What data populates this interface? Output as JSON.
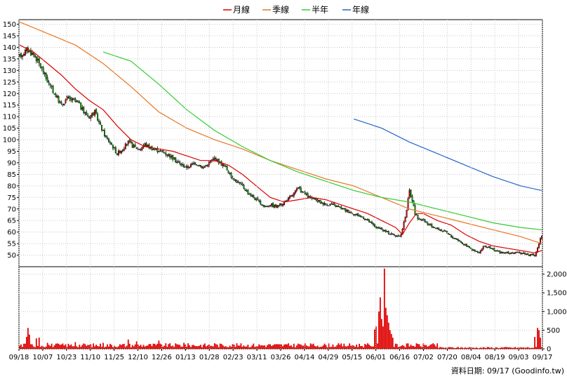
{
  "chart_data": {
    "type": "candlestick-with-volume",
    "legend": [
      {
        "label": "月線",
        "color": "#dd0000"
      },
      {
        "label": "季線",
        "color": "#e87722"
      },
      {
        "label": "半年",
        "color": "#33cc33"
      },
      {
        "label": "年線",
        "color": "#2266cc"
      }
    ],
    "price_axis": {
      "ylim": [
        45,
        152
      ],
      "ticks": [
        50,
        55,
        60,
        65,
        70,
        75,
        80,
        85,
        90,
        95,
        100,
        105,
        110,
        115,
        120,
        125,
        130,
        135,
        140,
        145,
        150
      ]
    },
    "volume_axis": {
      "ylim": [
        0,
        2200
      ],
      "ticks": [
        0,
        500,
        1000,
        1500,
        2000
      ],
      "tick_labels": [
        "0",
        "500",
        "1,000",
        "1,500",
        "2,000"
      ]
    },
    "x_labels": [
      "09/18",
      "10/07",
      "10/23",
      "11/10",
      "11/25",
      "12/10",
      "12/26",
      "01/13",
      "01/28",
      "02/23",
      "03/11",
      "03/26",
      "04/14",
      "04/29",
      "05/15",
      "06/01",
      "06/16",
      "07/02",
      "07/20",
      "08/04",
      "08/19",
      "09/03",
      "09/17"
    ],
    "price_anchors": [
      [
        0,
        136
      ],
      [
        5,
        139
      ],
      [
        10,
        137
      ],
      [
        14,
        133
      ],
      [
        18,
        128
      ],
      [
        22,
        123
      ],
      [
        26,
        119
      ],
      [
        30,
        115
      ],
      [
        34,
        118
      ],
      [
        38,
        117
      ],
      [
        42,
        116
      ],
      [
        46,
        112
      ],
      [
        50,
        110
      ],
      [
        54,
        112
      ],
      [
        58,
        106
      ],
      [
        62,
        101
      ],
      [
        66,
        98
      ],
      [
        70,
        94
      ],
      [
        74,
        96
      ],
      [
        78,
        99
      ],
      [
        82,
        97
      ],
      [
        86,
        96
      ],
      [
        90,
        98
      ],
      [
        96,
        96
      ],
      [
        102,
        95
      ],
      [
        108,
        93
      ],
      [
        114,
        90
      ],
      [
        120,
        88
      ],
      [
        126,
        90
      ],
      [
        132,
        88
      ],
      [
        136,
        90
      ],
      [
        140,
        92
      ],
      [
        144,
        90
      ],
      [
        148,
        88
      ],
      [
        152,
        84
      ],
      [
        156,
        82
      ],
      [
        160,
        80
      ],
      [
        164,
        77
      ],
      [
        168,
        75
      ],
      [
        172,
        73
      ],
      [
        176,
        71
      ],
      [
        180,
        72
      ],
      [
        184,
        71
      ],
      [
        188,
        72
      ],
      [
        192,
        74
      ],
      [
        196,
        76
      ],
      [
        200,
        79
      ],
      [
        204,
        77
      ],
      [
        208,
        75
      ],
      [
        212,
        74
      ],
      [
        216,
        73
      ],
      [
        220,
        72
      ],
      [
        224,
        72
      ],
      [
        228,
        71
      ],
      [
        232,
        70
      ],
      [
        236,
        69
      ],
      [
        240,
        68
      ],
      [
        244,
        67
      ],
      [
        248,
        66
      ],
      [
        252,
        64
      ],
      [
        256,
        62
      ],
      [
        260,
        61
      ],
      [
        264,
        60
      ],
      [
        268,
        59
      ],
      [
        272,
        58
      ],
      [
        274,
        59
      ],
      [
        276,
        64
      ],
      [
        278,
        70
      ],
      [
        280,
        78
      ],
      [
        282,
        74
      ],
      [
        284,
        68
      ],
      [
        286,
        66
      ],
      [
        290,
        65
      ],
      [
        294,
        63
      ],
      [
        298,
        62
      ],
      [
        302,
        61
      ],
      [
        306,
        60
      ],
      [
        310,
        58
      ],
      [
        314,
        57
      ],
      [
        318,
        55
      ],
      [
        322,
        54
      ],
      [
        326,
        52
      ],
      [
        330,
        51
      ],
      [
        334,
        54
      ],
      [
        338,
        53
      ],
      [
        342,
        52
      ],
      [
        346,
        51
      ],
      [
        350,
        51
      ],
      [
        354,
        51
      ],
      [
        358,
        51
      ],
      [
        362,
        51
      ],
      [
        366,
        50
      ],
      [
        370,
        50
      ],
      [
        372,
        53
      ],
      [
        374,
        57
      ],
      [
        375,
        58
      ]
    ],
    "ma_month": [
      [
        0,
        141
      ],
      [
        10,
        138
      ],
      [
        20,
        133
      ],
      [
        30,
        128
      ],
      [
        40,
        122
      ],
      [
        50,
        117
      ],
      [
        60,
        113
      ],
      [
        70,
        106
      ],
      [
        80,
        100
      ],
      [
        90,
        97
      ],
      [
        100,
        96
      ],
      [
        110,
        95
      ],
      [
        120,
        93
      ],
      [
        130,
        91
      ],
      [
        140,
        91
      ],
      [
        150,
        89
      ],
      [
        160,
        85
      ],
      [
        170,
        80
      ],
      [
        180,
        75
      ],
      [
        190,
        73
      ],
      [
        200,
        74
      ],
      [
        210,
        75
      ],
      [
        220,
        74
      ],
      [
        230,
        72
      ],
      [
        240,
        70
      ],
      [
        250,
        68
      ],
      [
        260,
        65
      ],
      [
        270,
        62
      ],
      [
        275,
        59
      ],
      [
        280,
        64
      ],
      [
        285,
        68
      ],
      [
        290,
        68
      ],
      [
        300,
        65
      ],
      [
        310,
        63
      ],
      [
        320,
        59
      ],
      [
        330,
        56
      ],
      [
        340,
        54
      ],
      [
        350,
        53
      ],
      [
        360,
        52
      ],
      [
        370,
        51
      ],
      [
        375,
        52
      ]
    ],
    "ma_quarter": [
      [
        0,
        151
      ],
      [
        20,
        146
      ],
      [
        40,
        141
      ],
      [
        60,
        133
      ],
      [
        80,
        123
      ],
      [
        100,
        112
      ],
      [
        120,
        105
      ],
      [
        140,
        100
      ],
      [
        160,
        96
      ],
      [
        180,
        91
      ],
      [
        200,
        87
      ],
      [
        220,
        83
      ],
      [
        240,
        80
      ],
      [
        260,
        75
      ],
      [
        280,
        70
      ],
      [
        300,
        67
      ],
      [
        320,
        64
      ],
      [
        340,
        61
      ],
      [
        360,
        58
      ],
      [
        375,
        55
      ]
    ],
    "ma_half": [
      [
        60,
        138
      ],
      [
        80,
        134
      ],
      [
        100,
        124
      ],
      [
        120,
        113
      ],
      [
        140,
        104
      ],
      [
        160,
        97
      ],
      [
        180,
        91
      ],
      [
        200,
        86
      ],
      [
        220,
        82
      ],
      [
        240,
        78
      ],
      [
        260,
        75
      ],
      [
        280,
        73
      ],
      [
        300,
        70
      ],
      [
        320,
        67
      ],
      [
        340,
        64
      ],
      [
        360,
        62
      ],
      [
        375,
        61
      ]
    ],
    "ma_year": [
      [
        240,
        109
      ],
      [
        260,
        105
      ],
      [
        280,
        99
      ],
      [
        300,
        94
      ],
      [
        320,
        89
      ],
      [
        340,
        84
      ],
      [
        360,
        80
      ],
      [
        375,
        78
      ]
    ],
    "volume_spikes": [
      [
        5,
        320
      ],
      [
        6,
        560
      ],
      [
        7,
        380
      ],
      [
        12,
        280
      ],
      [
        14,
        300
      ],
      [
        20,
        160
      ],
      [
        40,
        180
      ],
      [
        60,
        160
      ],
      [
        78,
        250
      ],
      [
        84,
        200
      ],
      [
        100,
        220
      ],
      [
        118,
        160
      ],
      [
        140,
        150
      ],
      [
        180,
        120
      ],
      [
        200,
        140
      ],
      [
        255,
        520
      ],
      [
        256,
        600
      ],
      [
        258,
        1000
      ],
      [
        259,
        1380
      ],
      [
        260,
        800
      ],
      [
        261,
        600
      ],
      [
        262,
        2150
      ],
      [
        263,
        1100
      ],
      [
        264,
        900
      ],
      [
        265,
        700
      ],
      [
        266,
        500
      ],
      [
        267,
        400
      ],
      [
        268,
        300
      ],
      [
        370,
        320
      ],
      [
        372,
        560
      ],
      [
        373,
        500
      ],
      [
        374,
        300
      ]
    ],
    "footer_text": "資料日期: 09/17  (Goodinfo.tw)"
  }
}
